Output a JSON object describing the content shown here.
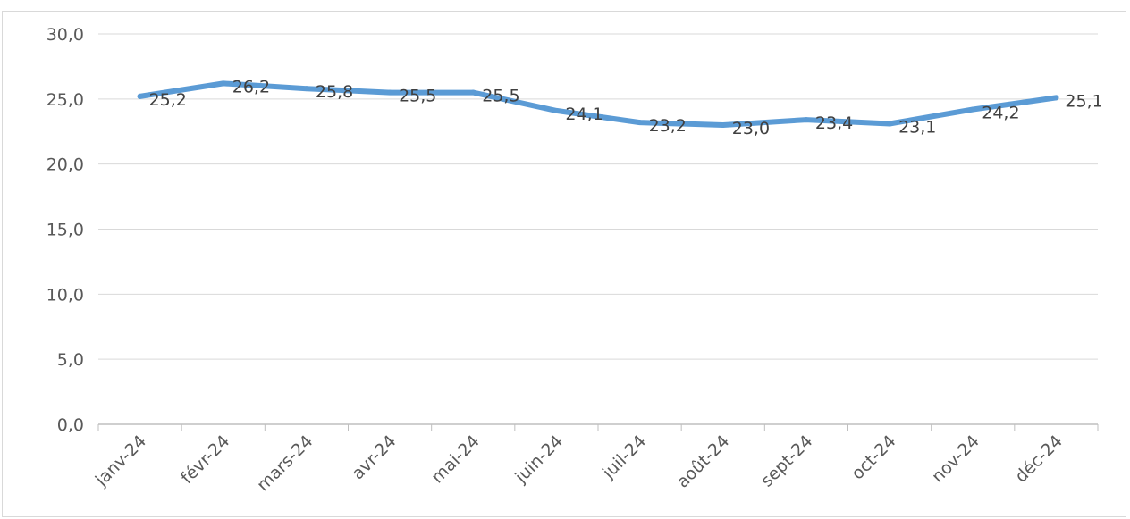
{
  "caption": "",
  "chart_data": {
    "type": "line",
    "title": "",
    "xlabel": "",
    "ylabel": "",
    "categories": [
      "janv-24",
      "févr-24",
      "mars-24",
      "avr-24",
      "mai-24",
      "juin-24",
      "juil-24",
      "août-24",
      "sept-24",
      "oct-24",
      "nov-24",
      "déc-24"
    ],
    "series": [
      {
        "values": [
          25.2,
          26.2,
          25.8,
          25.5,
          25.5,
          24.1,
          23.2,
          23.0,
          23.4,
          23.1,
          24.2,
          25.1
        ],
        "labels": [
          "25,2",
          "26,2",
          "25,8",
          "25,5",
          "25,5",
          "24,1",
          "23,2",
          "23,0",
          "23,4",
          "23,1",
          "24,2",
          "25,1"
        ],
        "color": "#5b9bd5"
      }
    ],
    "yticks": [
      0,
      5,
      10,
      15,
      20,
      25,
      30
    ],
    "ytick_labels": [
      "0,0",
      "5,0",
      "10,0",
      "15,0",
      "20,0",
      "25,0",
      "30,0"
    ],
    "ylim": [
      0,
      30
    ],
    "grid": true,
    "legend": "none",
    "gridline_color": "#d9d9d9",
    "axis_line_color": "#bfbfbf"
  }
}
